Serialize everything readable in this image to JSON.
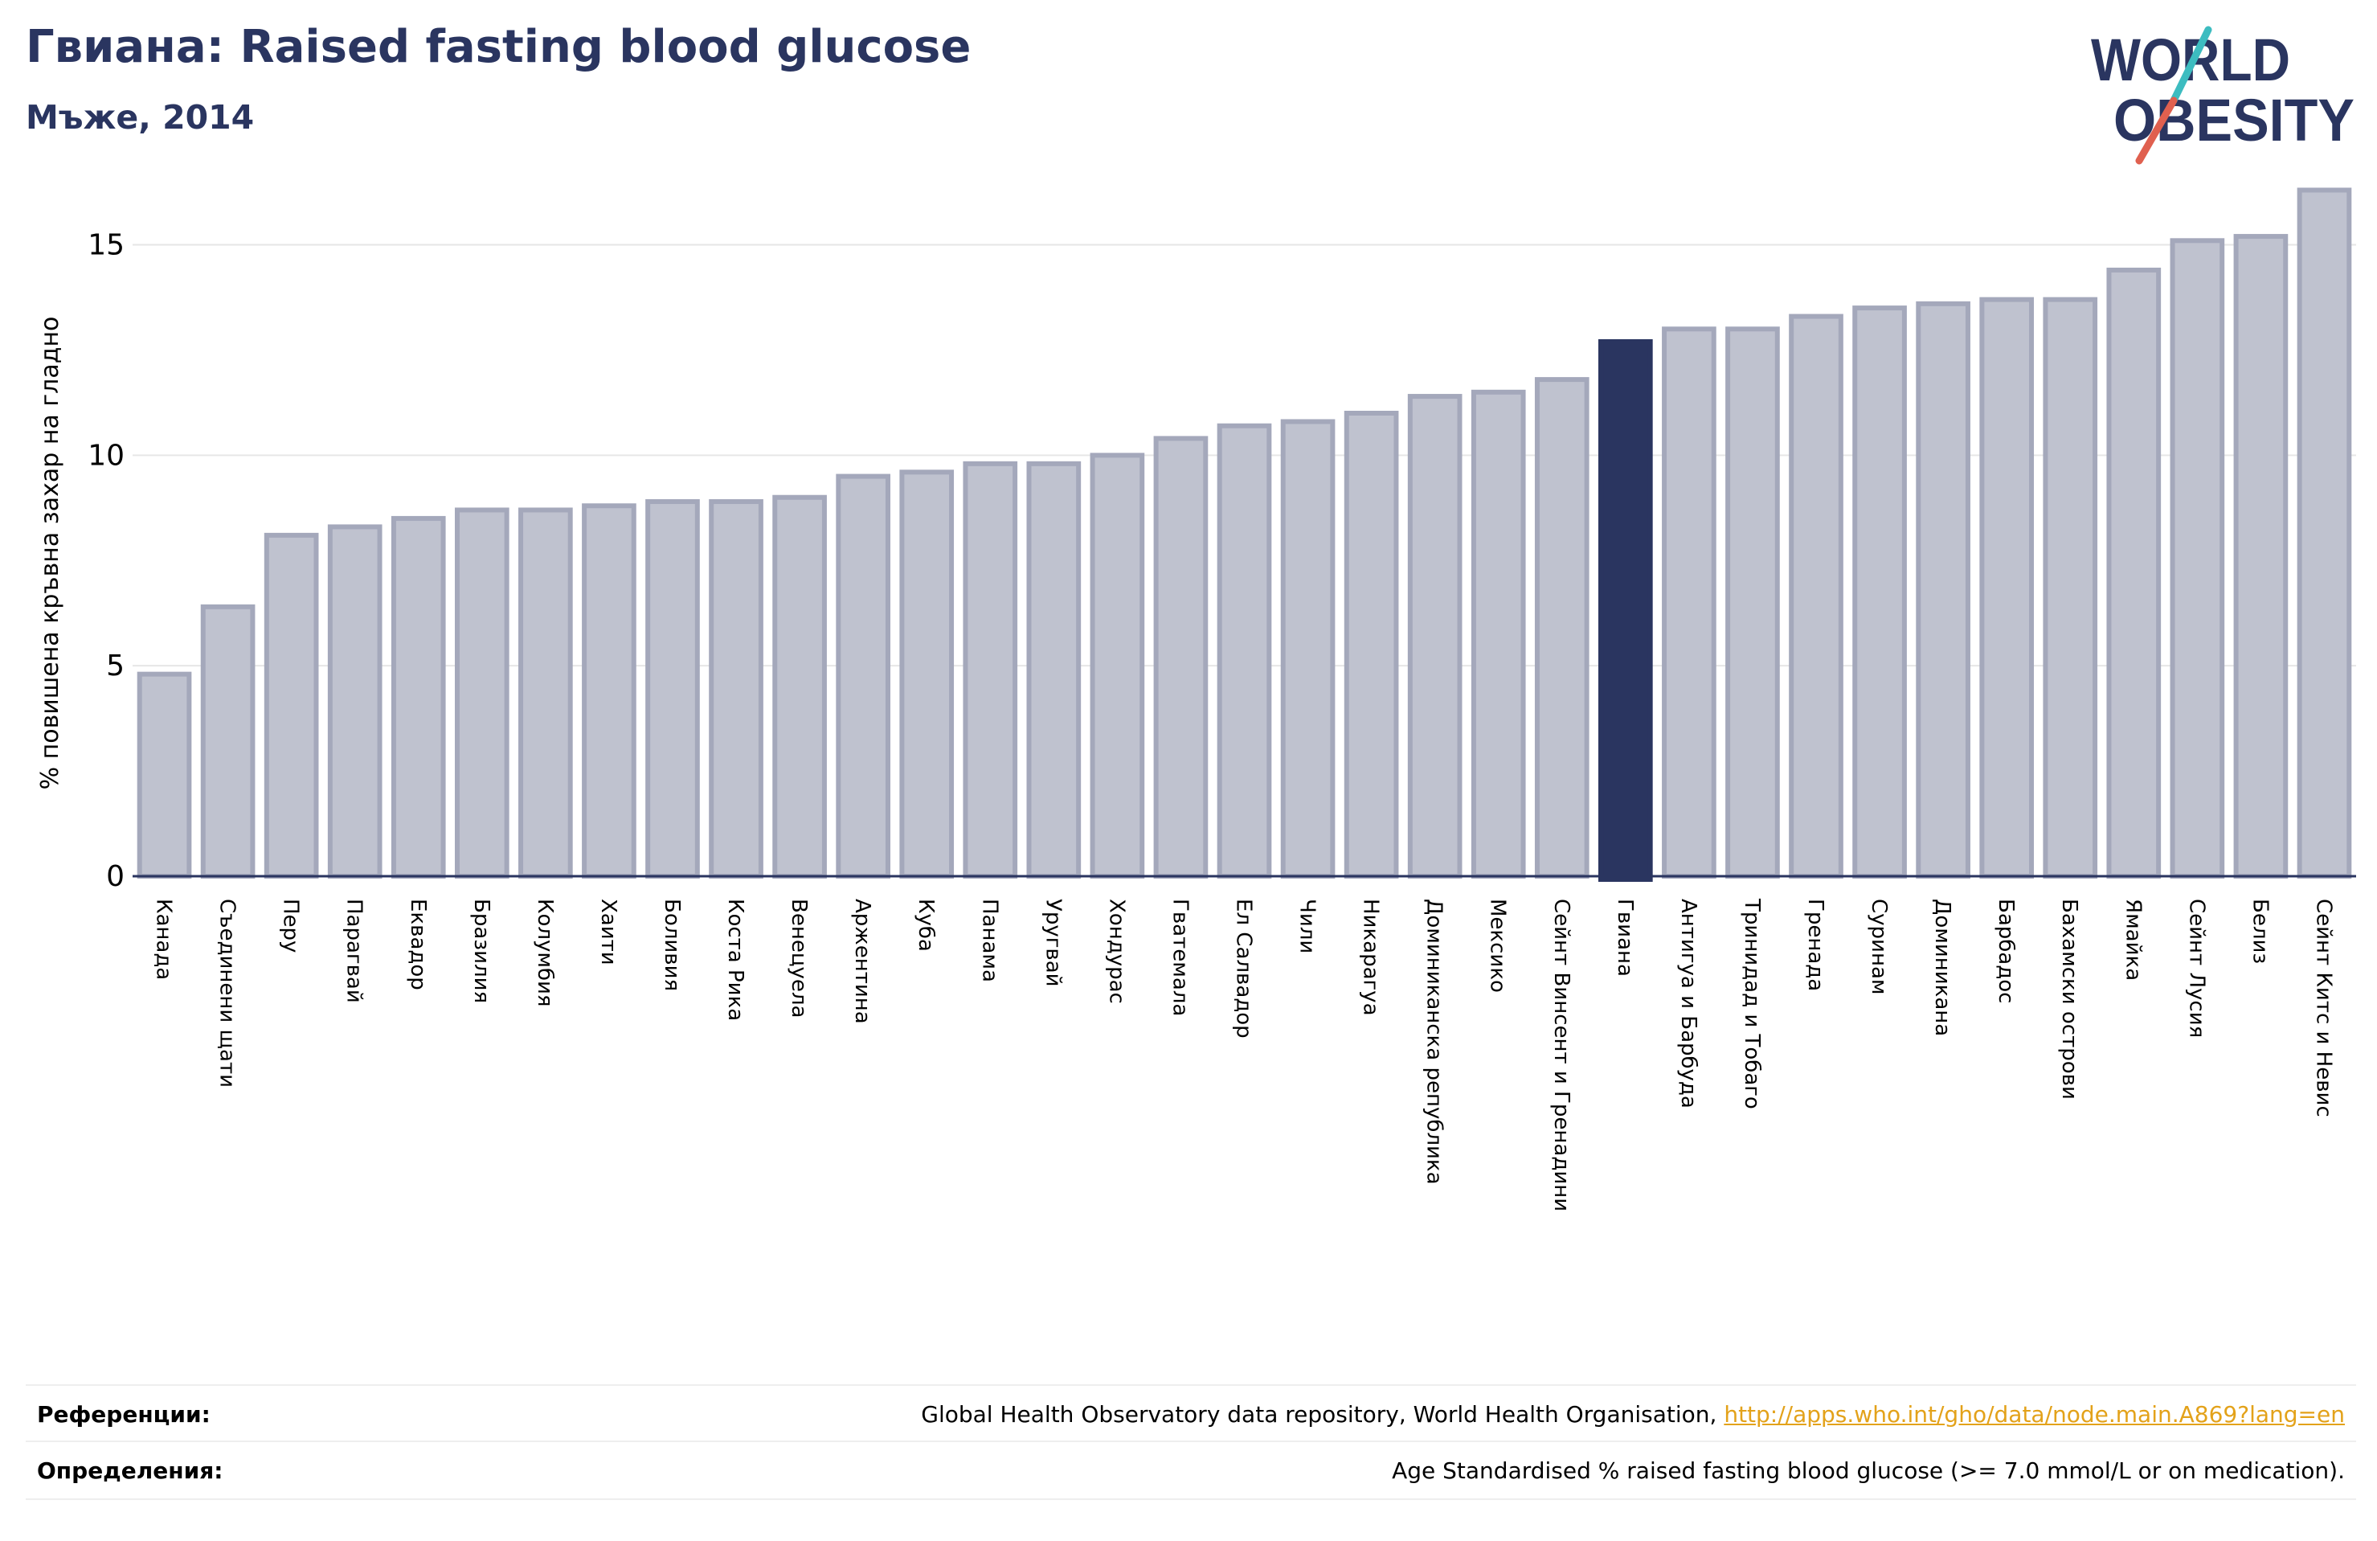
{
  "header": {
    "title": "Гвиана: Raised fasting blood glucose",
    "subtitle": "Мъже, 2014"
  },
  "logo": {
    "line1": "WORLD",
    "line2": "OBESITY",
    "accent_teal": "#3dbcc0",
    "accent_red": "#e0604f",
    "text_color": "#2a3560"
  },
  "chart_data": {
    "type": "bar",
    "title": "Гвиана: Raised fasting blood glucose",
    "subtitle": "Мъже, 2014",
    "ylabel": "% повишена кръвна захар на гладно",
    "xlabel": "",
    "ylim": [
      0,
      16.5
    ],
    "yticks": [
      0,
      5,
      10,
      15
    ],
    "grid": true,
    "highlight": "Гвиана",
    "colors": {
      "bar": "#bfc2cf",
      "bar_edge": "#a4a8bb",
      "highlight": "#2a3560"
    },
    "categories": [
      "Канада",
      "Съединени щати",
      "Перу",
      "Парагвай",
      "Еквадор",
      "Бразилия",
      "Колумбия",
      "Хаити",
      "Боливия",
      "Коста Рика",
      "Венецуела",
      "Аржентина",
      "Куба",
      "Панама",
      "Уругвай",
      "Хондурас",
      "Гватемала",
      "Ел Салвадор",
      "Чили",
      "Никарагуа",
      "Доминиканска република",
      "Мексико",
      "Сейнт Винсент и Гренадини",
      "Гвиана",
      "Антигуа и Барбуда",
      "Тринидад и Тобаго",
      "Гренада",
      "Суринам",
      "Доминикана",
      "Барбадос",
      "Бахамски острови",
      "Ямайка",
      "Сейнт Лусия",
      "Белиз",
      "Сейнт Китс и Невис"
    ],
    "values": [
      4.8,
      6.4,
      8.1,
      8.3,
      8.5,
      8.7,
      8.7,
      8.8,
      8.9,
      8.9,
      9.0,
      9.5,
      9.6,
      9.8,
      9.8,
      10.0,
      10.4,
      10.7,
      10.8,
      11.0,
      11.4,
      11.5,
      11.8,
      12.7,
      13.0,
      13.0,
      13.3,
      13.5,
      13.6,
      13.7,
      13.7,
      14.4,
      15.1,
      15.2,
      16.3
    ]
  },
  "references": {
    "sources_label": "Референции:",
    "sources_text": "Global Health Observatory data repository, World Health Organisation, ",
    "sources_link": "http://apps.who.int/gho/data/node.main.A869?lang=en",
    "definitions_label": "Определения:",
    "definitions_text": "Age Standardised % raised fasting blood glucose (>= 7.0 mmol/L or on medication)."
  }
}
